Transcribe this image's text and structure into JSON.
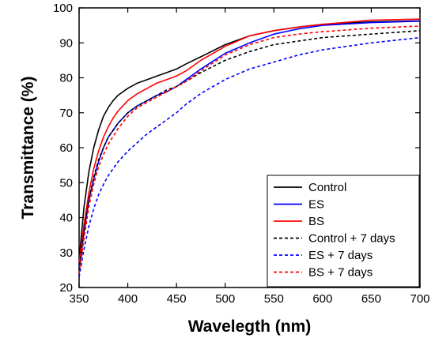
{
  "chart_data": {
    "type": "line",
    "title": "",
    "xlabel": "Wavelegth (nm)",
    "ylabel": "Transmittance (%)",
    "xlim": [
      350,
      700
    ],
    "ylim": [
      20,
      100
    ],
    "xticks": [
      350,
      400,
      450,
      500,
      550,
      600,
      650,
      700
    ],
    "yticks": [
      20,
      30,
      40,
      50,
      60,
      70,
      80,
      90,
      100
    ],
    "grid": false,
    "legend_position": "bottom-right",
    "series": [
      {
        "name": "Control",
        "color": "#000000",
        "dash": "solid",
        "x": [
          350,
          355,
          360,
          365,
          370,
          375,
          380,
          385,
          390,
          400,
          410,
          420,
          430,
          440,
          450,
          460,
          475,
          500,
          525,
          550,
          575,
          600,
          650,
          700
        ],
        "y": [
          28,
          43,
          53,
          60,
          65,
          69,
          71.5,
          73.5,
          75,
          77,
          78.5,
          79.5,
          80.5,
          81.5,
          82.5,
          84,
          86,
          89.5,
          92,
          93.5,
          94.5,
          95.3,
          96,
          96.3
        ]
      },
      {
        "name": "ES",
        "color": "#0000ff",
        "dash": "solid",
        "x": [
          350,
          355,
          360,
          365,
          370,
          375,
          380,
          390,
          400,
          410,
          420,
          430,
          440,
          450,
          460,
          475,
          500,
          525,
          550,
          575,
          600,
          650,
          700
        ],
        "y": [
          26,
          36,
          45,
          51,
          56,
          60,
          63,
          67,
          70,
          72,
          73.5,
          75,
          76,
          77.5,
          79.5,
          82.5,
          87,
          90,
          92.5,
          94,
          95,
          95.8,
          96.2
        ]
      },
      {
        "name": "BS",
        "color": "#ff0000",
        "dash": "solid",
        "x": [
          350,
          355,
          360,
          365,
          370,
          375,
          380,
          385,
          390,
          400,
          410,
          420,
          430,
          440,
          450,
          460,
          475,
          500,
          525,
          550,
          575,
          600,
          650,
          700
        ],
        "y": [
          27,
          38,
          47,
          54,
          59,
          63,
          66,
          68.5,
          70.5,
          73.5,
          75.5,
          77,
          78.5,
          79.5,
          80.5,
          82,
          85,
          89,
          92,
          93.5,
          94.5,
          95.3,
          96.5,
          96.8
        ]
      },
      {
        "name": "Control + 7 days",
        "color": "#000000",
        "dash": "dashed",
        "x": [
          350,
          355,
          360,
          365,
          370,
          375,
          380,
          390,
          400,
          410,
          420,
          430,
          440,
          450,
          460,
          475,
          500,
          525,
          550,
          575,
          600,
          650,
          700
        ],
        "y": [
          25,
          36,
          45,
          51.5,
          56.5,
          60,
          63,
          67,
          70,
          72,
          73.5,
          75,
          76.5,
          77.5,
          79,
          81.5,
          85,
          87.5,
          89.5,
          90.5,
          91.5,
          92.5,
          93.5
        ]
      },
      {
        "name": "ES + 7 days",
        "color": "#0000ff",
        "dash": "dashed",
        "x": [
          350,
          355,
          360,
          365,
          370,
          375,
          380,
          390,
          400,
          410,
          420,
          430,
          440,
          450,
          460,
          475,
          500,
          525,
          550,
          575,
          600,
          650,
          700
        ],
        "y": [
          23,
          31,
          37.5,
          42.5,
          46.5,
          49.5,
          52,
          56,
          59,
          61.5,
          64,
          66,
          68,
          70,
          72.5,
          75.5,
          79.5,
          82.5,
          84.5,
          86.5,
          88,
          90,
          91.5
        ]
      },
      {
        "name": "BS + 7 days",
        "color": "#ff0000",
        "dash": "dashed",
        "x": [
          350,
          355,
          360,
          365,
          370,
          375,
          380,
          390,
          400,
          410,
          420,
          430,
          440,
          450,
          460,
          475,
          500,
          525,
          550,
          575,
          600,
          650,
          700
        ],
        "y": [
          24,
          34,
          43,
          49.5,
          54.5,
          58,
          61,
          65.5,
          69,
          71.5,
          73,
          74.5,
          76,
          77.5,
          79,
          82,
          86.5,
          89.5,
          91.5,
          92.5,
          93.2,
          94.2,
          94.8
        ]
      }
    ]
  }
}
